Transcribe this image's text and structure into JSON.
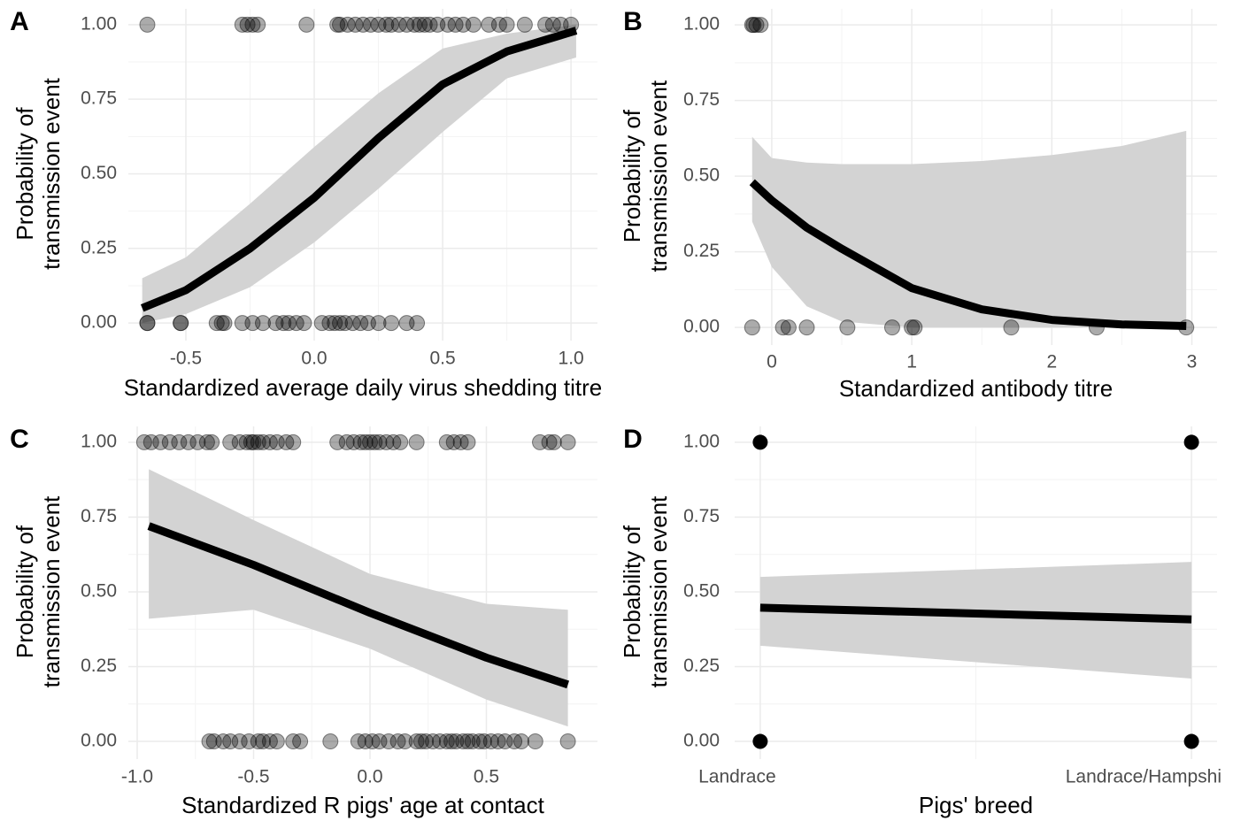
{
  "chart_data": [
    {
      "type": "logistic-fit",
      "panel_label": "A",
      "xlabel": "Standardized average daily virus shedding titre",
      "ylabel": [
        "Probability of",
        "transmission event"
      ],
      "xlim": [
        -0.724,
        1.103
      ],
      "ylim": [
        -0.059,
        1.053
      ],
      "xticks": [
        -0.5,
        {
          "value": 0,
          "label": "0.0"
        },
        0.5,
        {
          "value": 1,
          "label": "1.0"
        }
      ],
      "yticks": [
        {
          "value": 0,
          "label": "0.00"
        },
        {
          "value": 0.25,
          "label": "0.25"
        },
        {
          "value": 0.5,
          "label": "0.50"
        },
        {
          "value": 0.75,
          "label": "0.75"
        },
        {
          "value": 1,
          "label": "1.00"
        }
      ],
      "grid": true,
      "minor_grid": true,
      "point_color": "#000000",
      "line_color": "#000000",
      "ribbon_color": "#d3d3d3",
      "fit": {
        "x": [
          -0.67,
          -0.5,
          -0.25,
          0,
          0.25,
          0.5,
          0.75,
          1.02
        ],
        "y": [
          0.05,
          0.11,
          0.25,
          0.42,
          0.62,
          0.8,
          0.91,
          0.98
        ],
        "lower": [
          0.0,
          0.03,
          0.12,
          0.27,
          0.45,
          0.64,
          0.82,
          0.89
        ],
        "upper": [
          0.15,
          0.22,
          0.4,
          0.59,
          0.77,
          0.92,
          0.97,
          1.0
        ]
      },
      "observed": [
        {
          "y": 1,
          "x": [
            -0.65,
            -0.28,
            -0.26,
            -0.24,
            -0.22,
            -0.03,
            0.09,
            0.1,
            0.13,
            0.16,
            0.19,
            0.22,
            0.25,
            0.28,
            0.3,
            0.33,
            0.36,
            0.39,
            0.41,
            0.43,
            0.45,
            0.48,
            0.52,
            0.55,
            0.58,
            0.62,
            0.68,
            0.72,
            0.75,
            0.82,
            0.9,
            0.93,
            0.96,
            1.0
          ]
        },
        {
          "y": 0,
          "x": [
            -0.65,
            -0.65,
            -0.52,
            -0.52,
            -0.38,
            -0.36,
            -0.35,
            -0.28,
            -0.24,
            -0.2,
            -0.15,
            -0.12,
            -0.1,
            -0.07,
            -0.04,
            0.03,
            0.06,
            0.08,
            0.1,
            0.12,
            0.15,
            0.18,
            0.21,
            0.25,
            0.3,
            0.36,
            0.4
          ]
        }
      ]
    },
    {
      "type": "logistic-fit",
      "panel_label": "B",
      "xlabel": "Standardized antibody titre",
      "ylabel": [
        "Probability of",
        "transmission event"
      ],
      "xlim": [
        -0.265,
        3.18
      ],
      "ylim": [
        -0.058,
        1.053
      ],
      "xticks": [
        0,
        1,
        2,
        3
      ],
      "yticks": [
        {
          "value": 0,
          "label": "0.00"
        },
        {
          "value": 0.25,
          "label": "0.25"
        },
        {
          "value": 0.5,
          "label": "0.50"
        },
        {
          "value": 0.75,
          "label": "0.75"
        },
        {
          "value": 1,
          "label": "1.00"
        }
      ],
      "grid": true,
      "minor_grid": true,
      "point_color": "#000000",
      "line_color": "#000000",
      "ribbon_color": "#d3d3d3",
      "fit": {
        "x": [
          -0.14,
          0,
          0.25,
          0.5,
          1,
          1.5,
          2,
          2.5,
          2.96
        ],
        "y": [
          0.48,
          0.42,
          0.33,
          0.26,
          0.13,
          0.06,
          0.025,
          0.01,
          0.005
        ],
        "lower": [
          0.35,
          0.2,
          0.07,
          0.02,
          0.0,
          0.0,
          0.0,
          0.0,
          0.0
        ],
        "upper": [
          0.63,
          0.56,
          0.545,
          0.54,
          0.54,
          0.55,
          0.57,
          0.6,
          0.65
        ]
      },
      "observed": [
        {
          "y": 1,
          "x": [
            -0.14,
            -0.13,
            -0.11,
            -0.08
          ]
        },
        {
          "y": 0,
          "x": [
            -0.14,
            0.08,
            0.12,
            0.25,
            0.54,
            0.86,
            1.0,
            1.02,
            1.71,
            2.32,
            2.96
          ]
        }
      ]
    },
    {
      "type": "logistic-fit",
      "panel_label": "C",
      "xlabel": "Standardized R pigs' age at contact",
      "ylabel": [
        "Probability of",
        "transmission event"
      ],
      "xlim": [
        -1.038,
        0.977
      ],
      "ylim": [
        -0.059,
        1.053
      ],
      "xticks": [
        {
          "value": -1,
          "label": "-1.0"
        },
        -0.5,
        {
          "value": 0,
          "label": "0.0"
        },
        0.5
      ],
      "yticks": [
        {
          "value": 0,
          "label": "0.00"
        },
        {
          "value": 0.25,
          "label": "0.25"
        },
        {
          "value": 0.5,
          "label": "0.50"
        },
        {
          "value": 0.75,
          "label": "0.75"
        },
        {
          "value": 1,
          "label": "1.00"
        }
      ],
      "grid": true,
      "minor_grid": true,
      "point_color": "#000000",
      "line_color": "#000000",
      "ribbon_color": "#d3d3d3",
      "fit": {
        "x": [
          -0.95,
          -0.5,
          0,
          0.5,
          0.85
        ],
        "y": [
          0.72,
          0.59,
          0.43,
          0.28,
          0.19
        ],
        "lower": [
          0.41,
          0.44,
          0.31,
          0.14,
          0.05
        ],
        "upper": [
          0.91,
          0.74,
          0.56,
          0.46,
          0.44
        ]
      },
      "observed": [
        {
          "y": 1,
          "x": [
            -0.97,
            -0.94,
            -0.9,
            -0.86,
            -0.82,
            -0.78,
            -0.74,
            -0.7,
            -0.68,
            -0.6,
            -0.56,
            -0.53,
            -0.51,
            -0.5,
            -0.48,
            -0.46,
            -0.43,
            -0.4,
            -0.36,
            -0.33,
            -0.14,
            -0.1,
            -0.07,
            -0.04,
            -0.02,
            0.0,
            0.02,
            0.04,
            0.07,
            0.1,
            0.13,
            0.2,
            0.33,
            0.36,
            0.39,
            0.42,
            0.73,
            0.77,
            0.79,
            0.85
          ]
        },
        {
          "y": 0,
          "x": [
            -0.69,
            -0.67,
            -0.63,
            -0.6,
            -0.56,
            -0.52,
            -0.48,
            -0.46,
            -0.43,
            -0.4,
            -0.33,
            -0.3,
            -0.17,
            -0.05,
            -0.02,
            0.01,
            0.04,
            0.08,
            0.12,
            0.15,
            0.2,
            0.22,
            0.24,
            0.27,
            0.3,
            0.33,
            0.35,
            0.37,
            0.4,
            0.42,
            0.44,
            0.47,
            0.49,
            0.52,
            0.55,
            0.58,
            0.62,
            0.65,
            0.71,
            0.85
          ]
        }
      ]
    },
    {
      "type": "categorical-fit",
      "panel_label": "D",
      "xlabel": "Pigs' breed",
      "ylabel": [
        "Probability of",
        "transmission event"
      ],
      "categories": [
        "Landrace",
        "Landrace/Hampshi"
      ],
      "ylim": [
        -0.059,
        1.053
      ],
      "yticks": [
        {
          "value": 0,
          "label": "0.00"
        },
        {
          "value": 0.25,
          "label": "0.25"
        },
        {
          "value": 0.5,
          "label": "0.50"
        },
        {
          "value": 0.75,
          "label": "0.75"
        },
        {
          "value": 1,
          "label": "1.00"
        }
      ],
      "grid": true,
      "minor_grid": true,
      "point_color": "#000000",
      "line_color": "#000000",
      "ribbon_color": "#d3d3d3",
      "fit": {
        "y": [
          0.447,
          0.408
        ],
        "lower": [
          0.32,
          0.21
        ],
        "upper": [
          0.55,
          0.6
        ]
      },
      "observed": [
        [
          1,
          0
        ],
        [
          1,
          0
        ]
      ]
    }
  ]
}
